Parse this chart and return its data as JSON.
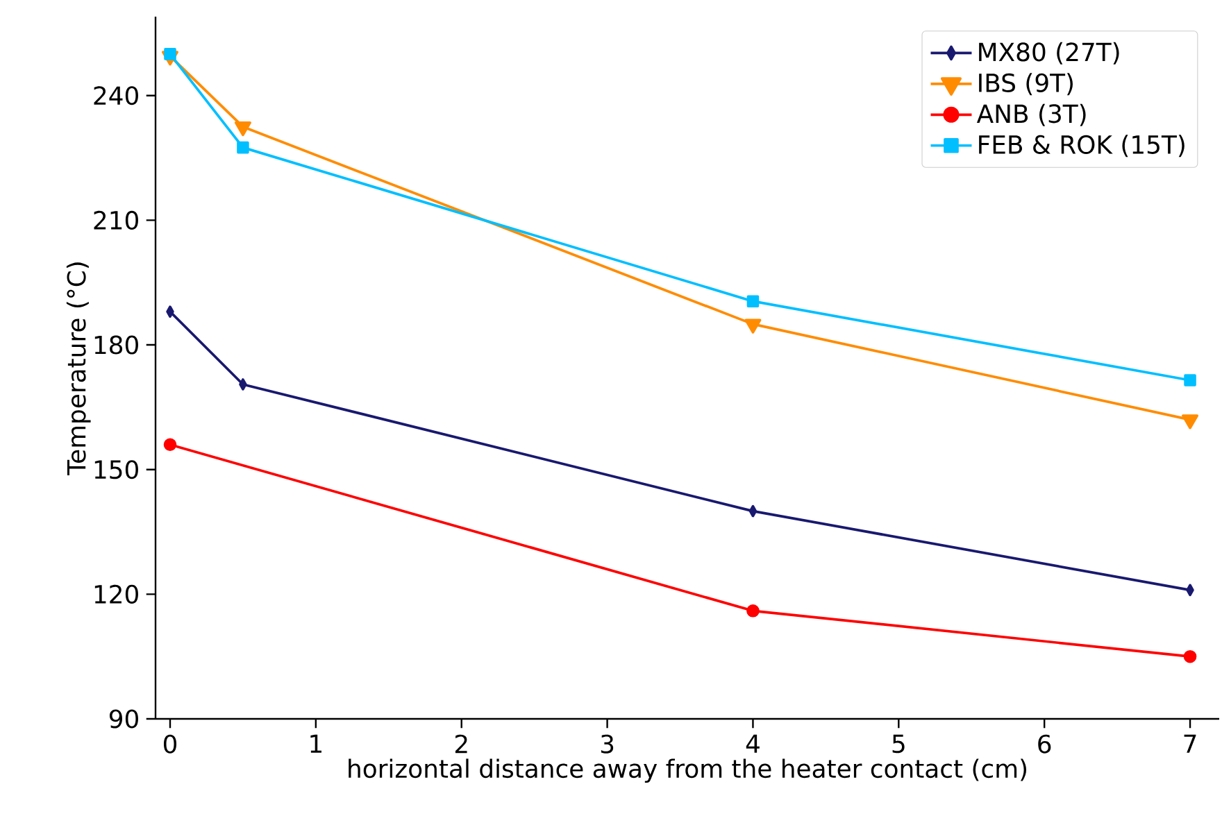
{
  "chart_data": {
    "type": "line",
    "xlabel": "horizontal distance away from the heater contact (cm)",
    "ylabel": "Temperature (°C)",
    "xlim": [
      -0.1,
      7.2
    ],
    "ylim": [
      90,
      259
    ],
    "xticks": [
      0,
      1,
      2,
      3,
      4,
      5,
      6,
      7
    ],
    "yticks": [
      90,
      120,
      150,
      180,
      210,
      240
    ],
    "x": [
      0,
      0.5,
      4,
      7
    ],
    "legend": "top right",
    "grid": false,
    "series": [
      {
        "name": "MX80 (27T)",
        "color": "#191970",
        "marker": "diamond",
        "values": [
          188,
          170.5,
          140,
          121
        ]
      },
      {
        "name": "IBS (9T)",
        "color": "#ff8c00",
        "marker": "triangle",
        "values": [
          249.5,
          232.5,
          185,
          162
        ]
      },
      {
        "name": "ANB (3T)",
        "color": "#ff0000",
        "marker": "circle",
        "x": [
          0,
          4,
          7
        ],
        "values": [
          156,
          116,
          105
        ]
      },
      {
        "name": "FEB & ROK (15T)",
        "color": "#00bfff",
        "marker": "square",
        "values": [
          250,
          227.5,
          190.5,
          171.5
        ]
      }
    ]
  }
}
